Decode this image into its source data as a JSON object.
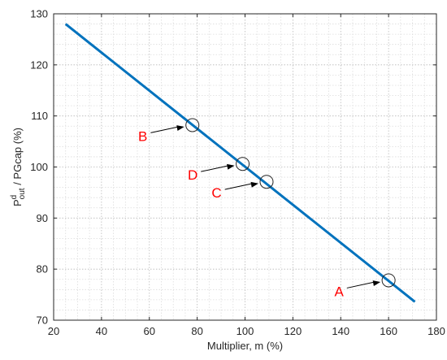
{
  "chart_data": {
    "type": "line",
    "title": "",
    "xlabel": "Multiplier, m (%)",
    "ylabel": {
      "base": "P",
      "superscript": "d",
      "subscript": "out",
      "rest": " / PGcap (%)"
    },
    "xlim": [
      20,
      180
    ],
    "ylim": [
      70,
      130
    ],
    "x_ticks": [
      20,
      40,
      60,
      80,
      100,
      120,
      140,
      160,
      180
    ],
    "y_ticks": [
      70,
      80,
      90,
      100,
      110,
      120,
      130
    ],
    "grid": "major and minor, dotted",
    "legend": "none",
    "series": [
      {
        "color": "#0072BD",
        "x": [
          25,
          171
        ],
        "y": [
          128,
          73.6
        ]
      }
    ],
    "points": [
      {
        "label": "B",
        "x": 78,
        "y": 108.2
      },
      {
        "label": "D",
        "x": 99,
        "y": 100.6
      },
      {
        "label": "C",
        "x": 109,
        "y": 97.1
      },
      {
        "label": "A",
        "x": 160,
        "y": 77.8
      }
    ],
    "annotation_color": "#ff0000"
  }
}
